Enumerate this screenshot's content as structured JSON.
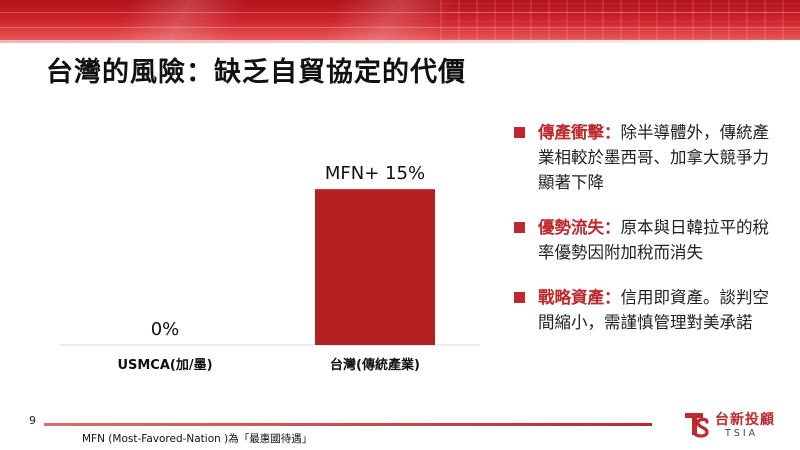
{
  "title": "台灣的風險：缺乏自貿協定的代價",
  "chart_data": {
    "type": "bar",
    "categories": [
      "USMCA(加/墨)",
      "台灣(傳統產業)"
    ],
    "values": [
      0,
      15
    ],
    "data_labels": [
      "0%",
      "MFN+ 15%"
    ],
    "bar_color": "#b3201f",
    "ylim": [
      0,
      18
    ],
    "grid": false,
    "legend": "none"
  },
  "bullets": [
    {
      "keyword": "傳產衝擊：",
      "text": "除半導體外，傳統產業相較於墨西哥、加拿大競爭力顯著下降"
    },
    {
      "keyword": "優勢流失：",
      "text": "原本與日韓拉平的稅率優勢因附加稅而消失"
    },
    {
      "keyword": "戰略資產：",
      "text": "信用即資產。談判空間縮小，需謹慎管理對美承諾"
    }
  ],
  "footer": {
    "page_number": "9",
    "footnote": "MFN  (Most-Favored-Nation )為「最惠國待遇」"
  },
  "logo": {
    "name": "台新投顧",
    "sub": "TSIA",
    "icon": "tsia-logo-icon"
  },
  "colors": {
    "accent": "#c0282d",
    "header": "#c4161c"
  }
}
